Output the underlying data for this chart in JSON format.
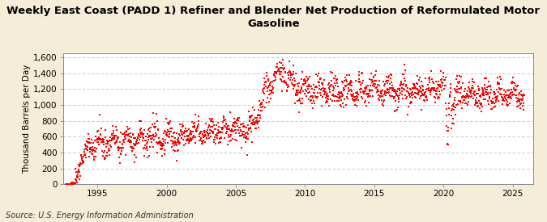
{
  "title": "Weekly East Coast (PADD 1) Refiner and Blender Net Production of Reformulated Motor\nGasoline",
  "ylabel": "Thousand Barrels per Day",
  "source": "Source: U.S. Energy Information Administration",
  "xlim": [
    1992.5,
    2026.5
  ],
  "ylim": [
    0,
    1650
  ],
  "yticks": [
    0,
    200,
    400,
    600,
    800,
    1000,
    1200,
    1400,
    1600
  ],
  "xticks": [
    1995,
    2000,
    2005,
    2010,
    2015,
    2020,
    2025
  ],
  "dot_color": "#FF0000",
  "figure_bg": "#F5EDD8",
  "plot_bg": "#FFFFFF",
  "grid_color": "#BBBBBB",
  "title_fontsize": 9.5,
  "label_fontsize": 7.5,
  "tick_fontsize": 7.5,
  "source_fontsize": 7
}
